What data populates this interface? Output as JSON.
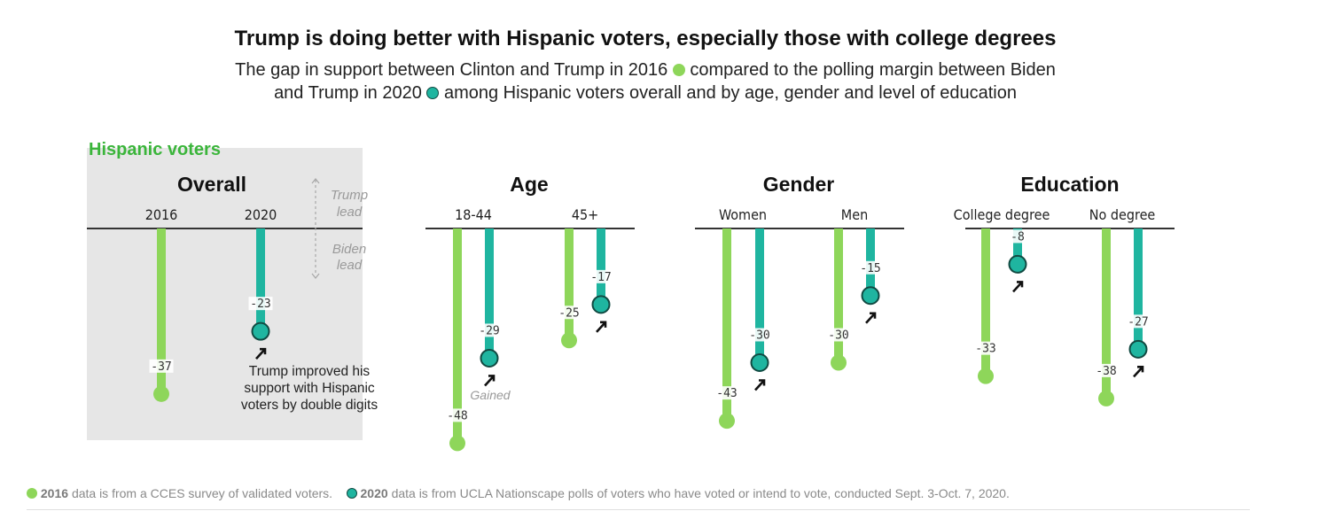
{
  "title": "Trump is doing better with Hispanic voters, especially those with college degrees",
  "subtitle": {
    "part1": "The gap in support between Clinton and Trump in 2016",
    "part2": "compared to the polling margin between Biden",
    "part3": "and Trump in 2020",
    "part4": "among Hispanic voters overall and by age, gender and level of education"
  },
  "hispanic_label": "Hispanic voters",
  "key": {
    "trump_lead": [
      "Trump",
      "lead"
    ],
    "biden_lead": [
      "Biden",
      "lead"
    ]
  },
  "annotations": {
    "overall_note": [
      "Trump improved his",
      "support with Hispanic",
      "voters by double digits"
    ],
    "gained": "Gained"
  },
  "colors": {
    "y2016": "#8ed65a",
    "y2020": "#1fb5a0",
    "dot_stroke": "#114a42",
    "green_label": "#3bb53b"
  },
  "footer": {
    "y2016_bold": "2016",
    "y2016_text": "data is from a CCES survey of validated voters.",
    "y2020_bold": "2020",
    "y2020_text": "data is from UCLA Nationscape polls of voters who have voted or intend to vote, conducted Sept. 3-Oct. 7, 2020."
  },
  "chart_data": {
    "type": "bar",
    "series_names": [
      "2016",
      "2020"
    ],
    "groups": [
      {
        "title": "Overall",
        "categories": [
          {
            "label": "2016",
            "v2016": -37,
            "v2020": null
          },
          {
            "label": "2020",
            "v2016": null,
            "v2020": -23
          }
        ]
      },
      {
        "title": "Age",
        "categories": [
          {
            "label": "18-44",
            "v2016": -48,
            "v2020": -29
          },
          {
            "label": "45+",
            "v2016": -25,
            "v2020": -17
          }
        ]
      },
      {
        "title": "Gender",
        "categories": [
          {
            "label": "Women",
            "v2016": -43,
            "v2020": -30
          },
          {
            "label": "Men",
            "v2016": -30,
            "v2020": -15
          }
        ]
      },
      {
        "title": "Education",
        "categories": [
          {
            "label": "College degree",
            "v2016": -33,
            "v2020": -8
          },
          {
            "label": "No degree",
            "v2016": -38,
            "v2020": -27
          }
        ]
      }
    ]
  }
}
